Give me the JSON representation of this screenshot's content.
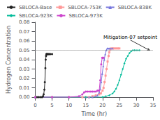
{
  "chart_data": {
    "type": "line",
    "xlabel": "Time (hr)",
    "ylabel": "Hydrogen Concentration",
    "xlim": [
      0,
      35
    ],
    "ylim": [
      0,
      0.08
    ],
    "xticks": [
      0,
      5,
      10,
      15,
      20,
      25,
      30,
      35
    ],
    "yticks": [
      {
        "value": 0,
        "label": "0.00"
      },
      0.01,
      0.02,
      0.03,
      0.04,
      0.05,
      0.06,
      0.07,
      0.08
    ],
    "grid": false,
    "legend": "upper left",
    "hlines": [
      {
        "y": 0.05,
        "color": "#888888",
        "line_style": "dotted"
      }
    ],
    "annotations": [
      {
        "text": "Mitigation-07 setpoint",
        "x": 26.5,
        "y": 0.061,
        "arrow_x": 34.0,
        "arrow_y": 0.05
      }
    ],
    "series": [
      {
        "name": "SBLOCA-Base",
        "color": "#222222",
        "marker": "circle",
        "x": [
          0.0,
          0.5,
          1.0,
          1.5,
          2.0,
          2.3,
          2.5,
          2.7,
          2.85,
          3.0,
          3.1,
          3.2,
          3.3,
          3.4,
          3.5,
          3.6,
          3.8,
          4.0,
          4.2,
          4.5,
          5.0
        ],
        "values": [
          0.0,
          0.0,
          0.0,
          0.0,
          0.0,
          0.001,
          0.003,
          0.008,
          0.016,
          0.031,
          0.04,
          0.044,
          0.046,
          0.046,
          0.046,
          0.046,
          0.046,
          0.046,
          0.046,
          0.046,
          0.046
        ]
      },
      {
        "name": "SBLOCA-753K",
        "color": "#ff9999",
        "marker": "square",
        "x": [
          0,
          5,
          10,
          14,
          15,
          16,
          17,
          18,
          19,
          19.5,
          20.0,
          20.3,
          20.6,
          20.9,
          21.2,
          21.5,
          21.8,
          22.0,
          22.3,
          22.6,
          23.0,
          23.5,
          24.0,
          24.5,
          25.0
        ],
        "values": [
          0.0,
          0.0,
          0.0,
          0.0,
          0.0,
          0.0,
          0.001,
          0.002,
          0.003,
          0.004,
          0.007,
          0.01,
          0.016,
          0.023,
          0.03,
          0.038,
          0.044,
          0.048,
          0.051,
          0.052,
          0.052,
          0.052,
          0.052,
          0.052,
          0.052
        ]
      },
      {
        "name": "SBLOCA-838K",
        "color": "#7777dd",
        "marker": "triangle",
        "x": [
          0,
          5,
          10,
          15,
          16,
          17,
          18,
          18.5,
          19.0,
          19.3,
          19.6,
          19.9,
          20.2,
          20.5,
          20.8,
          21.1,
          21.4,
          21.7,
          22.0,
          22.5,
          23.0
        ],
        "values": [
          0.0,
          0.0,
          0.0,
          0.0,
          0.0,
          0.0,
          0.001,
          0.002,
          0.005,
          0.009,
          0.016,
          0.025,
          0.033,
          0.04,
          0.046,
          0.05,
          0.052,
          0.052,
          0.052,
          0.052,
          0.052
        ]
      },
      {
        "name": "SBLOCA-923K",
        "color": "#00bb99",
        "marker": "diamond",
        "x": [
          0,
          5,
          10,
          15,
          20,
          21,
          22,
          23,
          23.5,
          24.0,
          24.5,
          25.0,
          25.5,
          26.0,
          26.5,
          27.0,
          27.5,
          28.0,
          28.5,
          29.0,
          29.5,
          30.0,
          30.5,
          31.0
        ],
        "values": [
          0.0,
          0.0,
          0.0,
          0.0,
          0.0,
          0.001,
          0.002,
          0.004,
          0.006,
          0.009,
          0.013,
          0.018,
          0.024,
          0.03,
          0.036,
          0.041,
          0.044,
          0.047,
          0.049,
          0.05,
          0.05,
          0.05,
          0.05,
          0.05
        ]
      },
      {
        "name": "SBLOCA-973K",
        "color": "#cc44cc",
        "marker": "circle",
        "x": [
          0,
          5,
          10,
          13,
          14,
          14.5,
          15.0,
          15.5,
          16.0,
          16.5,
          17.0,
          17.5,
          18.0,
          18.5,
          19.0,
          19.3,
          19.6,
          19.9,
          20.1,
          20.3
        ],
        "values": [
          0.0,
          0.0,
          0.0,
          0.001,
          0.003,
          0.005,
          0.006,
          0.006,
          0.006,
          0.006,
          0.006,
          0.006,
          0.006,
          0.007,
          0.007,
          0.018,
          0.035,
          0.042,
          0.042,
          0.042
        ]
      }
    ]
  }
}
